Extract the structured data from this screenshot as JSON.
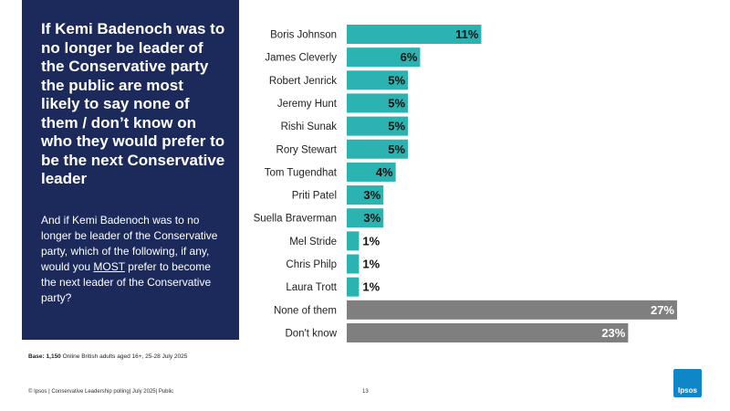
{
  "panel": {
    "title": "If Kemi Badenoch was to no longer be leader of the Conservative party the public are most likely to say none of them / don’t know on who they would prefer to be the next Conservative leader",
    "question_before": "And if Kemi Badenoch was to no longer be leader of the Conservative party, which of the following, if any, would you ",
    "question_emphasis": "MOST",
    "question_after": " prefer to become the next leader of the Conservative party?"
  },
  "base": {
    "label": "Base:",
    "count": "1,150",
    "text": " Online British adults aged 16+,  25-28 July 2025"
  },
  "footer": {
    "text": "© Ipsos | Conservative Leadership polling| July 2025| Public",
    "page": "13"
  },
  "logo": {
    "text": "Ipsos",
    "color": "#0f87c7"
  },
  "colors": {
    "panel_bg": "#1b2a5b",
    "bar_candidate": "#2ab3b1",
    "bar_other": "#7f7f7f"
  },
  "chart_data": {
    "type": "bar",
    "orientation": "horizontal",
    "categories": [
      "Boris Johnson",
      "James Cleverly",
      "Robert Jenrick",
      "Jeremy Hunt",
      "Rishi Sunak",
      "Rory Stewart",
      "Tom Tugendhat",
      "Priti Patel",
      "Suella Braverman",
      "Mel Stride",
      "Chris Philp",
      "Laura Trott",
      "None of them",
      "Don't know"
    ],
    "values": [
      11,
      6,
      5,
      5,
      5,
      5,
      4,
      3,
      3,
      1,
      1,
      1,
      27,
      23
    ],
    "value_labels": [
      "11%",
      "6%",
      "5%",
      "5%",
      "5%",
      "5%",
      "4%",
      "3%",
      "3%",
      "1%",
      "1%",
      "1%",
      "27%",
      "23%"
    ],
    "bar_colors": [
      "#2ab3b1",
      "#2ab3b1",
      "#2ab3b1",
      "#2ab3b1",
      "#2ab3b1",
      "#2ab3b1",
      "#2ab3b1",
      "#2ab3b1",
      "#2ab3b1",
      "#2ab3b1",
      "#2ab3b1",
      "#2ab3b1",
      "#7f7f7f",
      "#7f7f7f"
    ],
    "unit": "%",
    "xlim": [
      0,
      27
    ],
    "grid": false,
    "title": "",
    "xlabel": "",
    "ylabel": ""
  }
}
